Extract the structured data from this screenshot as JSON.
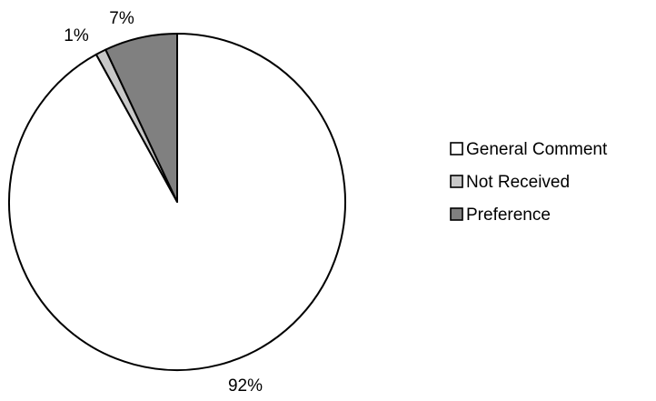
{
  "chart_data": {
    "type": "pie",
    "title": "",
    "categories": [
      "General Comment",
      "Not Received",
      "Preference"
    ],
    "values": [
      92,
      1,
      7
    ],
    "value_labels": [
      "92%",
      "1%",
      "7%"
    ],
    "colors": [
      "#ffffff",
      "#c8c8c8",
      "#808080"
    ],
    "border_color": "#000000",
    "start_angle": "12 o'clock",
    "direction": "clockwise",
    "legend": {
      "position": "right",
      "entries": [
        "General Comment",
        "Not Received",
        "Preference"
      ]
    }
  }
}
